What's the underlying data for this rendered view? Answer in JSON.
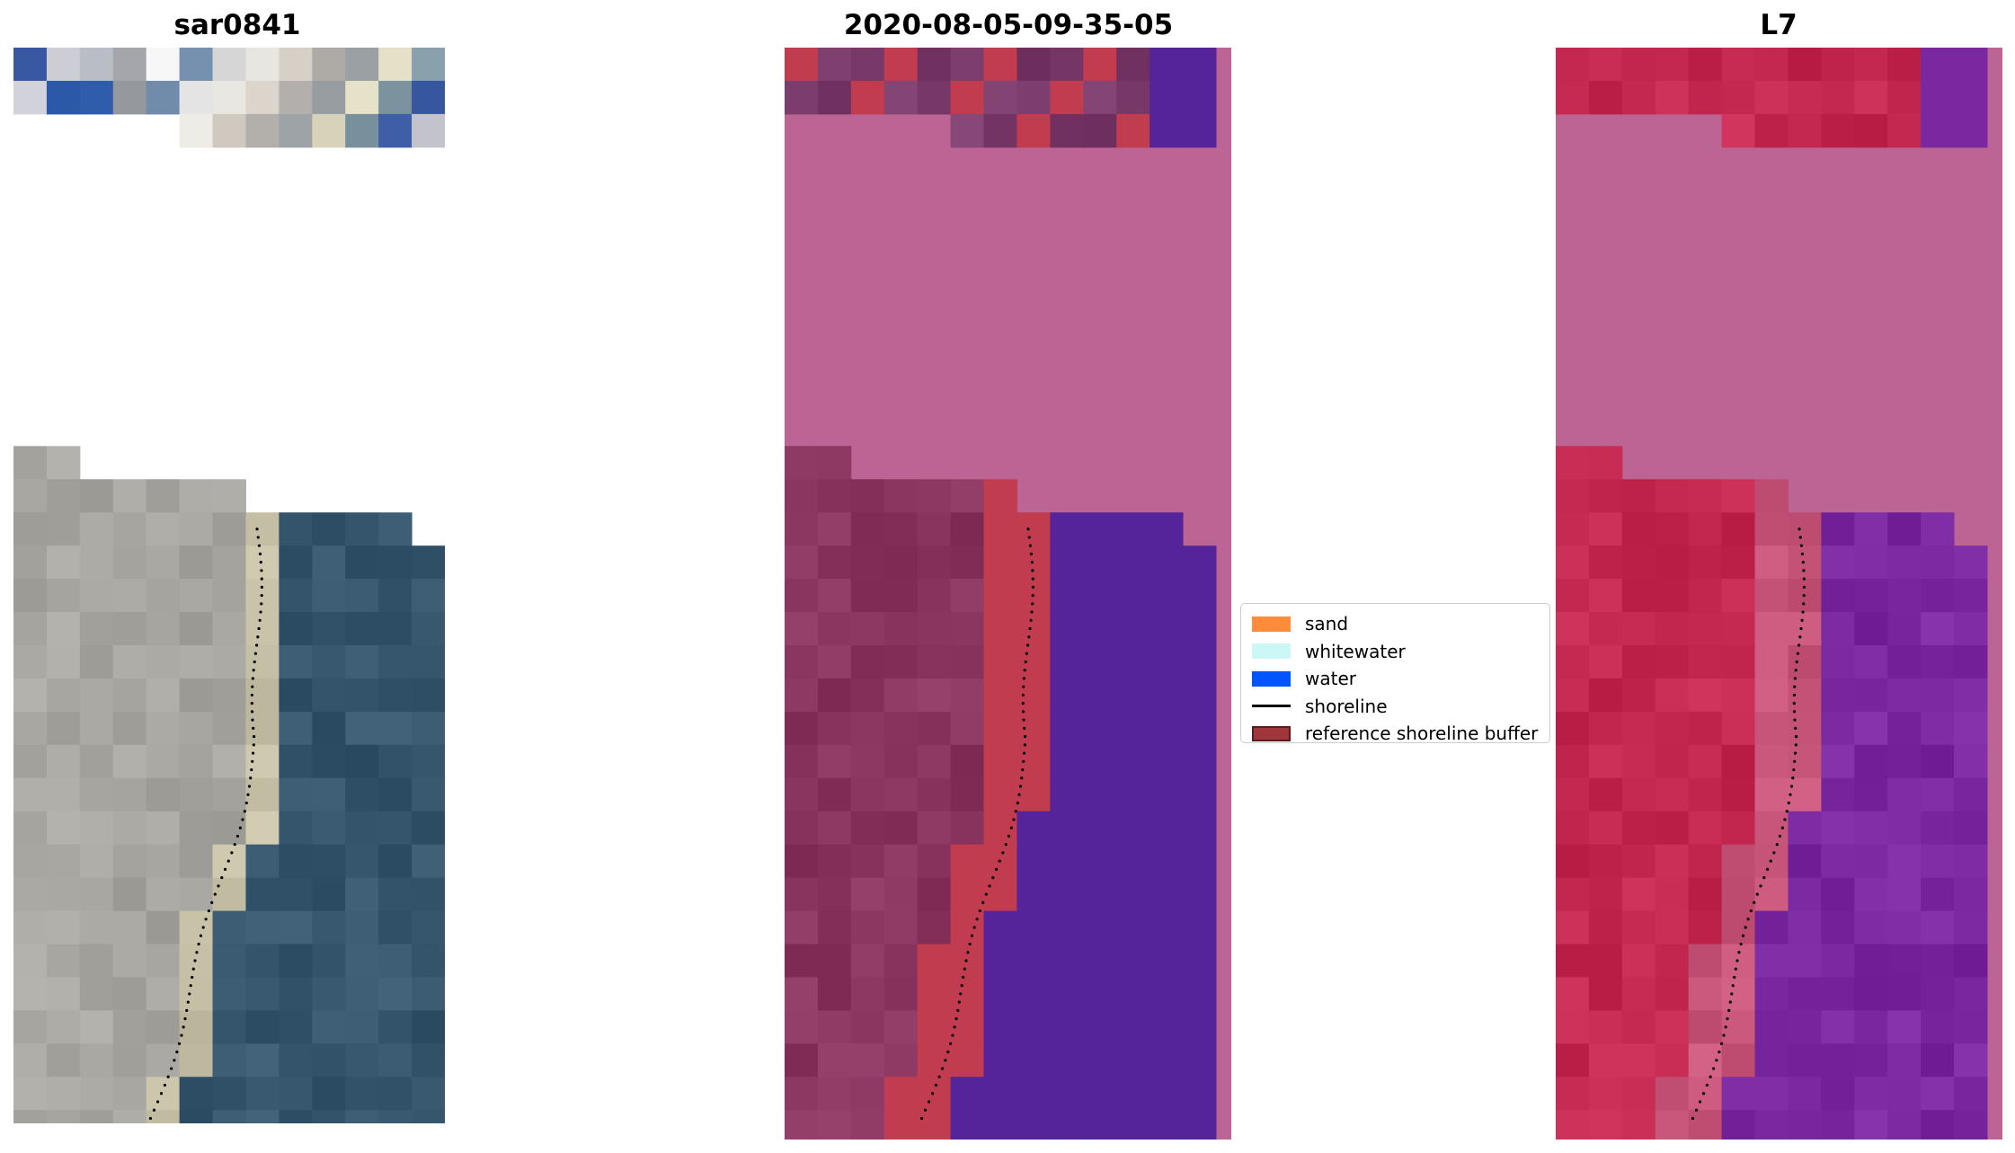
{
  "panels": {
    "rgb_title": "sar0841",
    "classification_title": "2020-08-05-09-35-05",
    "index_title": "L7"
  },
  "legend": {
    "items": [
      {
        "label": "sand",
        "type": "patch",
        "color": "#ff8c3a"
      },
      {
        "label": "whitewater",
        "type": "patch",
        "color": "#ccf7f7"
      },
      {
        "label": "water",
        "type": "patch",
        "color": "#0055ff"
      },
      {
        "label": "shoreline",
        "type": "line",
        "color": "#000000"
      },
      {
        "label": "reference shoreline buffer",
        "type": "patch",
        "color": "#a0353c",
        "edge": "#5a1b1f"
      }
    ]
  },
  "colors": {
    "land_mask_pink": "#bc6595",
    "land_dark": "#8a3560",
    "buffer_red": "#c23c50",
    "water_purple": "#55249a",
    "index_land_red": "#c4274f",
    "index_water_purple": "#7a28a0",
    "rgb_sand": "#a8a6a0",
    "rgb_water": "#35566c"
  },
  "icons": {
    "shoreline_marker": "dotted-shoreline-icon"
  }
}
